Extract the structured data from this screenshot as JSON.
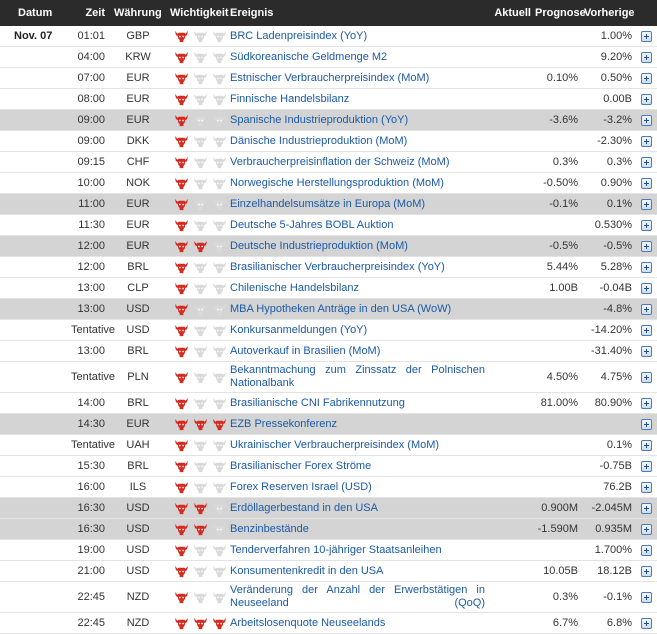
{
  "header": {
    "date": "Datum",
    "time": "Zeit",
    "currency": "Währung",
    "importance": "Wichtigkeit",
    "event": "Ereignis",
    "actual": "Aktuell",
    "forecast": "Prognose",
    "previous": "Vorherige"
  },
  "colors": {
    "bull_active": "#d42a20",
    "bull_inactive": "#d9d9d9",
    "highlight_row": "#d4d4d4",
    "header_bg": "#2b2b2b",
    "link": "#1c5aa6"
  },
  "rows": [
    {
      "date": "Nov. 07",
      "time": "01:01",
      "currency": "GBP",
      "importance": 1,
      "event": "BRC Ladenpreisindex (YoY)",
      "actual": "",
      "forecast": "",
      "previous": "1.00%",
      "highlight": false
    },
    {
      "date": "",
      "time": "04:00",
      "currency": "KRW",
      "importance": 1,
      "event": "Südkoreanische Geldmenge M2",
      "actual": "",
      "forecast": "",
      "previous": "9.20%",
      "highlight": false
    },
    {
      "date": "",
      "time": "07:00",
      "currency": "EUR",
      "importance": 1,
      "event": "Estnischer Verbraucherpreisindex (MoM)",
      "actual": "",
      "forecast": "0.10%",
      "previous": "0.50%",
      "highlight": false
    },
    {
      "date": "",
      "time": "08:00",
      "currency": "EUR",
      "importance": 1,
      "event": "Finnische Handelsbilanz",
      "actual": "",
      "forecast": "",
      "previous": "0.00B",
      "highlight": false
    },
    {
      "date": "",
      "time": "09:00",
      "currency": "EUR",
      "importance": 1,
      "event": "Spanische Industrieproduktion (YoY)",
      "actual": "",
      "forecast": "-3.6%",
      "previous": "-3.2%",
      "highlight": true
    },
    {
      "date": "",
      "time": "09:00",
      "currency": "DKK",
      "importance": 1,
      "event": "Dänische Industrieproduktion (MoM)",
      "actual": "",
      "forecast": "",
      "previous": "-2.30%",
      "highlight": false
    },
    {
      "date": "",
      "time": "09:15",
      "currency": "CHF",
      "importance": 1,
      "event": "Verbraucherpreisinflation der Schweiz (MoM)",
      "actual": "",
      "forecast": "0.3%",
      "previous": "0.3%",
      "highlight": false
    },
    {
      "date": "",
      "time": "10:00",
      "currency": "NOK",
      "importance": 1,
      "event": "Norwegische Herstellungsproduktion (MoM)",
      "actual": "",
      "forecast": "-0.50%",
      "previous": "0.90%",
      "highlight": false
    },
    {
      "date": "",
      "time": "11:00",
      "currency": "EUR",
      "importance": 1,
      "event": "Einzelhandelsumsätze in Europa (MoM)",
      "actual": "",
      "forecast": "-0.1%",
      "previous": "0.1%",
      "highlight": true
    },
    {
      "date": "",
      "time": "11:30",
      "currency": "EUR",
      "importance": 1,
      "event": "Deutsche 5-Jahres BOBL Auktion",
      "actual": "",
      "forecast": "",
      "previous": "0.530%",
      "highlight": false
    },
    {
      "date": "",
      "time": "12:00",
      "currency": "EUR",
      "importance": 2,
      "event": "Deutsche Industrieproduktion (MoM)",
      "actual": "",
      "forecast": "-0.5%",
      "previous": "-0.5%",
      "highlight": true
    },
    {
      "date": "",
      "time": "12:00",
      "currency": "BRL",
      "importance": 1,
      "event": "Brasilianischer Verbraucherpreisindex (YoY)",
      "actual": "",
      "forecast": "5.44%",
      "previous": "5.28%",
      "highlight": false
    },
    {
      "date": "",
      "time": "13:00",
      "currency": "CLP",
      "importance": 1,
      "event": "Chilenische Handelsbilanz",
      "actual": "",
      "forecast": "1.00B",
      "previous": "-0.04B",
      "highlight": false
    },
    {
      "date": "",
      "time": "13:00",
      "currency": "USD",
      "importance": 1,
      "event": "MBA Hypotheken Anträge in den USA (WoW)",
      "actual": "",
      "forecast": "",
      "previous": "-4.8%",
      "highlight": true
    },
    {
      "date": "",
      "time": "Tentative",
      "currency": "USD",
      "importance": 1,
      "event": "Konkursanmeldungen (YoY)",
      "actual": "",
      "forecast": "",
      "previous": "-14.20%",
      "highlight": false
    },
    {
      "date": "",
      "time": "13:00",
      "currency": "BRL",
      "importance": 1,
      "event": "Autoverkauf in Brasilien (MoM)",
      "actual": "",
      "forecast": "",
      "previous": "-31.40%",
      "highlight": false
    },
    {
      "date": "",
      "time": "Tentative",
      "currency": "PLN",
      "importance": 1,
      "event": "Bekanntmachung zum Zinssatz der Polnischen Nationalbank",
      "actual": "",
      "forecast": "4.50%",
      "previous": "4.75%",
      "highlight": false,
      "tall": true
    },
    {
      "date": "",
      "time": "14:00",
      "currency": "BRL",
      "importance": 1,
      "event": "Brasilianische CNI Fabrikennutzung",
      "actual": "",
      "forecast": "81.00%",
      "previous": "80.90%",
      "highlight": false
    },
    {
      "date": "",
      "time": "14:30",
      "currency": "EUR",
      "importance": 3,
      "event": "EZB Pressekonferenz",
      "actual": "",
      "forecast": "",
      "previous": "",
      "highlight": true
    },
    {
      "date": "",
      "time": "Tentative",
      "currency": "UAH",
      "importance": 1,
      "event": "Ukrainischer Verbraucherpreisindex (MoM)",
      "actual": "",
      "forecast": "",
      "previous": "0.1%",
      "highlight": false
    },
    {
      "date": "",
      "time": "15:30",
      "currency": "BRL",
      "importance": 1,
      "event": "Brasilianischer Forex Ströme",
      "actual": "",
      "forecast": "",
      "previous": "-0.75B",
      "highlight": false
    },
    {
      "date": "",
      "time": "16:00",
      "currency": "ILS",
      "importance": 1,
      "event": "Forex Reserven Israel (USD)",
      "actual": "",
      "forecast": "",
      "previous": "76.2B",
      "highlight": false
    },
    {
      "date": "",
      "time": "16:30",
      "currency": "USD",
      "importance": 2,
      "event": "Erdöllagerbestand in den USA",
      "actual": "",
      "forecast": "0.900M",
      "previous": "-2.045M",
      "highlight": true
    },
    {
      "date": "",
      "time": "16:30",
      "currency": "USD",
      "importance": 2,
      "event": "Benzinbestände",
      "actual": "",
      "forecast": "-1.590M",
      "previous": "0.935M",
      "highlight": true
    },
    {
      "date": "",
      "time": "19:00",
      "currency": "USD",
      "importance": 1,
      "event": "Tenderverfahren 10-jähriger Staatsanleihen",
      "actual": "",
      "forecast": "",
      "previous": "1.700%",
      "highlight": false
    },
    {
      "date": "",
      "time": "21:00",
      "currency": "USD",
      "importance": 1,
      "event": "Konsumentenkredit in den USA",
      "actual": "",
      "forecast": "10.05B",
      "previous": "18.12B",
      "highlight": false
    },
    {
      "date": "",
      "time": "22:45",
      "currency": "NZD",
      "importance": 1,
      "event": "Veränderung der Anzahl der Erwerbstätigen in Neuseeland (QoQ)",
      "actual": "",
      "forecast": "0.3%",
      "previous": "-0.1%",
      "highlight": false,
      "tall": true
    },
    {
      "date": "",
      "time": "22:45",
      "currency": "NZD",
      "importance": 3,
      "event": "Arbeitslosenquote Neuseelands",
      "actual": "",
      "forecast": "6.7%",
      "previous": "6.8%",
      "highlight": false
    }
  ]
}
